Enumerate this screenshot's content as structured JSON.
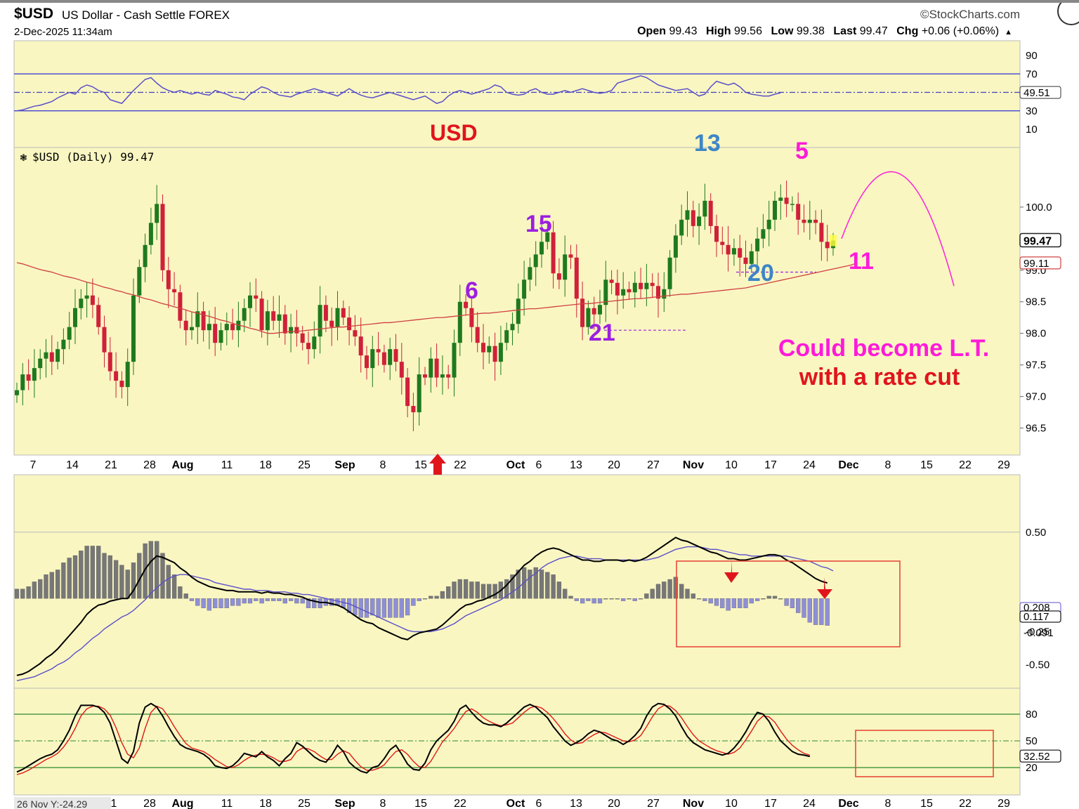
{
  "header": {
    "symbol": "$USD",
    "description": "US Dollar - Cash Settle FOREX",
    "datetime": "2-Dec-2025 11:34am",
    "brand": "©StockCharts.com",
    "ohlc": {
      "open_label": "Open",
      "open": "99.43",
      "high_label": "High",
      "high": "99.56",
      "low_label": "Low",
      "low": "99.38",
      "last_label": "Last",
      "last": "99.47",
      "chg_label": "Chg",
      "chg": "+0.06 (+0.06%)",
      "chg_arrow": "▲"
    }
  },
  "chart_data": [
    {
      "type": "line",
      "name": "RSI panel",
      "y_ticks": [
        "90",
        "70",
        "30",
        "10"
      ],
      "last_value_label": "49.51",
      "ylim": [
        0,
        100
      ],
      "levels": [
        70,
        50,
        30
      ],
      "values": [
        30,
        31,
        33,
        35,
        36,
        38,
        40,
        44,
        47,
        50,
        48,
        55,
        58,
        56,
        52,
        50,
        42,
        40,
        38,
        45,
        52,
        58,
        64,
        66,
        60,
        55,
        52,
        50,
        52,
        50,
        48,
        50,
        48,
        47,
        52,
        50,
        48,
        45,
        44,
        42,
        48,
        52,
        56,
        54,
        50,
        47,
        46,
        45,
        48,
        50,
        52,
        54,
        52,
        50,
        48,
        46,
        50,
        54,
        50,
        47,
        45,
        44,
        46,
        48,
        50,
        48,
        46,
        44,
        42,
        44,
        46,
        42,
        38,
        40,
        46,
        50,
        52,
        50,
        48,
        50,
        52,
        54,
        58,
        56,
        50,
        48,
        47,
        48,
        52,
        54,
        50,
        48,
        48,
        50,
        52,
        50,
        52,
        54,
        52,
        50,
        49,
        50,
        52,
        60,
        62,
        64,
        66,
        68,
        66,
        62,
        58,
        56,
        54,
        52,
        53,
        54,
        50,
        46,
        48,
        56,
        62,
        60,
        58,
        60,
        56,
        50,
        48,
        47,
        46,
        46,
        48,
        49.51
      ]
    },
    {
      "type": "candlestick",
      "name": "$USD (Daily)",
      "legend_label": "$USD (Daily) 99.47",
      "title": "USD",
      "ylim": [
        96.05,
        101.0
      ],
      "y_ticks": [
        "100.0",
        "99.5",
        "99.0",
        "98.5",
        "98.0",
        "97.5",
        "97.0",
        "96.5"
      ],
      "last_value_label": "99.47",
      "ma_value_label": "99.11",
      "x_tick_labels": [
        "7",
        "14",
        "21",
        "28",
        "Aug",
        "11",
        "18",
        "25",
        "Sep",
        "8",
        "15",
        "22",
        "Oct",
        "6",
        "13",
        "20",
        "27",
        "Nov",
        "10",
        "17",
        "24",
        "Dec",
        "8",
        "15",
        "22",
        "29"
      ],
      "closes": [
        97.1,
        97.35,
        97.25,
        97.45,
        97.6,
        97.7,
        97.55,
        97.75,
        97.9,
        98.1,
        98.4,
        98.55,
        98.6,
        98.45,
        98.1,
        97.7,
        97.4,
        97.25,
        97.15,
        97.55,
        98.6,
        99.05,
        99.4,
        99.75,
        100.05,
        99.0,
        98.7,
        98.65,
        98.2,
        98.05,
        98.1,
        98.35,
        98.05,
        98.15,
        97.85,
        98.05,
        98.15,
        98.05,
        98.2,
        98.4,
        98.6,
        98.55,
        98.05,
        98.35,
        98.2,
        98.3,
        98.0,
        98.1,
        98.0,
        97.85,
        97.75,
        97.95,
        98.45,
        98.2,
        98.1,
        98.4,
        98.25,
        98.05,
        97.95,
        97.65,
        97.45,
        97.75,
        97.7,
        97.5,
        97.75,
        97.55,
        97.3,
        96.85,
        96.75,
        97.35,
        97.3,
        97.6,
        97.3,
        97.35,
        97.3,
        97.85,
        98.5,
        98.4,
        98.1,
        97.85,
        97.7,
        97.8,
        97.55,
        97.85,
        98.05,
        98.15,
        98.55,
        98.85,
        99.05,
        99.25,
        99.45,
        99.6,
        98.95,
        98.85,
        99.25,
        99.2,
        98.55,
        98.1,
        98.4,
        98.3,
        98.45,
        98.85,
        98.8,
        98.6,
        98.7,
        98.65,
        98.8,
        98.7,
        98.8,
        98.75,
        98.55,
        98.7,
        99.2,
        99.55,
        99.8,
        99.95,
        99.7,
        99.85,
        100.1,
        99.7,
        99.45,
        99.4,
        99.25,
        99.35,
        99.2,
        99.1,
        99.3,
        99.5,
        99.65,
        99.8,
        100.1,
        100.15,
        100.05,
        100.05,
        99.8,
        99.75,
        99.8,
        99.75,
        99.45,
        99.35,
        99.47
      ],
      "ma50_values": [
        99.12,
        99.1,
        99.07,
        99.04,
        99.01,
        98.99,
        98.97,
        98.94,
        98.91,
        98.89,
        98.87,
        98.84,
        98.81,
        98.79,
        98.76,
        98.73,
        98.71,
        98.68,
        98.66,
        98.63,
        98.61,
        98.58,
        98.55,
        98.53,
        98.5,
        98.47,
        98.45,
        98.42,
        98.4,
        98.37,
        98.34,
        98.32,
        98.29,
        98.27,
        98.24,
        98.21,
        98.19,
        98.16,
        98.13,
        98.11,
        98.08,
        98.06,
        98.03,
        98.0,
        98.0,
        98.01,
        98.02,
        98.03,
        98.03,
        98.04,
        98.05,
        98.06,
        98.07,
        98.08,
        98.09,
        98.1,
        98.1,
        98.11,
        98.12,
        98.13,
        98.14,
        98.15,
        98.16,
        98.17,
        98.17,
        98.18,
        98.19,
        98.2,
        98.21,
        98.22,
        98.23,
        98.24,
        98.25,
        98.25,
        98.26,
        98.27,
        98.28,
        98.29,
        98.3,
        98.31,
        98.32,
        98.32,
        98.33,
        98.34,
        98.35,
        98.36,
        98.37,
        98.38,
        98.39,
        98.39,
        98.4,
        98.41,
        98.42,
        98.43,
        98.44,
        98.45,
        98.46,
        98.47,
        98.47,
        98.48,
        98.49,
        98.5,
        98.51,
        98.52,
        98.53,
        98.54,
        98.55,
        98.55,
        98.56,
        98.57,
        98.58,
        98.59,
        98.6,
        98.61,
        98.62,
        98.62,
        98.63,
        98.64,
        98.65,
        98.66,
        98.67,
        98.68,
        98.69,
        98.7,
        98.71,
        98.72,
        98.74,
        98.76,
        98.78,
        98.8,
        98.82,
        98.84,
        98.86,
        98.88,
        98.9,
        98.92,
        98.94,
        98.96,
        98.98,
        99.0,
        99.02,
        99.04,
        99.06,
        99.08,
        99.11
      ],
      "annotations": [
        {
          "text": "6",
          "color": "#9b1fe0"
        },
        {
          "text": "15",
          "color": "#9b1fe0"
        },
        {
          "text": "21",
          "color": "#9b1fe0"
        },
        {
          "text": "13",
          "color": "#3d86c6"
        },
        {
          "text": "20",
          "color": "#3d86c6"
        },
        {
          "text": "5",
          "color": "#ff1ad9"
        },
        {
          "text": "11",
          "color": "#ff1ad9"
        },
        {
          "text": "Could become L.T.",
          "color": "#ff1ad9"
        },
        {
          "text": "with a rate cut",
          "color": "#e0151c"
        }
      ]
    },
    {
      "type": "line",
      "name": "MACD panel",
      "ylim": [
        -0.65,
        0.7
      ],
      "y_ticks": [
        "0.50",
        "-0.25",
        "-0.50"
      ],
      "labels": {
        "macd": "0.117",
        "signal": "0.208",
        "histogram": "-0.091"
      },
      "macd_values": [
        -0.58,
        -0.57,
        -0.55,
        -0.52,
        -0.49,
        -0.45,
        -0.42,
        -0.38,
        -0.33,
        -0.28,
        -0.23,
        -0.18,
        -0.12,
        -0.08,
        -0.05,
        -0.04,
        -0.02,
        -0.01,
        0.0,
        0.0,
        0.06,
        0.14,
        0.22,
        0.28,
        0.32,
        0.31,
        0.29,
        0.27,
        0.23,
        0.2,
        0.16,
        0.13,
        0.11,
        0.09,
        0.08,
        0.07,
        0.06,
        0.06,
        0.05,
        0.05,
        0.05,
        0.05,
        0.04,
        0.05,
        0.04,
        0.04,
        0.03,
        0.03,
        0.02,
        0.01,
        -0.01,
        -0.02,
        -0.03,
        -0.03,
        -0.04,
        -0.05,
        -0.07,
        -0.1,
        -0.13,
        -0.16,
        -0.18,
        -0.19,
        -0.22,
        -0.24,
        -0.26,
        -0.28,
        -0.3,
        -0.31,
        -0.28,
        -0.26,
        -0.25,
        -0.24,
        -0.23,
        -0.2,
        -0.16,
        -0.12,
        -0.08,
        -0.05,
        -0.04,
        -0.02,
        -0.01,
        0.01,
        0.03,
        0.06,
        0.1,
        0.15,
        0.2,
        0.25,
        0.28,
        0.32,
        0.35,
        0.37,
        0.38,
        0.37,
        0.35,
        0.33,
        0.31,
        0.29,
        0.29,
        0.28,
        0.28,
        0.29,
        0.29,
        0.29,
        0.28,
        0.29,
        0.28,
        0.29,
        0.31,
        0.34,
        0.37,
        0.4,
        0.43,
        0.46,
        0.44,
        0.43,
        0.41,
        0.39,
        0.37,
        0.35,
        0.34,
        0.32,
        0.3,
        0.3,
        0.29,
        0.29,
        0.3,
        0.31,
        0.32,
        0.33,
        0.33,
        0.32,
        0.29,
        0.27,
        0.24,
        0.21,
        0.18,
        0.15,
        0.13,
        0.117
      ],
      "signal_values": [
        -0.62,
        -0.61,
        -0.6,
        -0.59,
        -0.57,
        -0.55,
        -0.53,
        -0.5,
        -0.48,
        -0.45,
        -0.41,
        -0.38,
        -0.34,
        -0.3,
        -0.27,
        -0.23,
        -0.2,
        -0.17,
        -0.14,
        -0.12,
        -0.09,
        -0.05,
        -0.01,
        0.04,
        0.08,
        0.12,
        0.15,
        0.17,
        0.18,
        0.18,
        0.17,
        0.16,
        0.15,
        0.14,
        0.12,
        0.11,
        0.1,
        0.09,
        0.08,
        0.07,
        0.07,
        0.06,
        0.06,
        0.06,
        0.05,
        0.05,
        0.05,
        0.04,
        0.04,
        0.03,
        0.03,
        0.02,
        0.01,
        0.0,
        -0.01,
        -0.02,
        -0.03,
        -0.04,
        -0.06,
        -0.08,
        -0.1,
        -0.12,
        -0.14,
        -0.16,
        -0.18,
        -0.2,
        -0.22,
        -0.24,
        -0.25,
        -0.25,
        -0.25,
        -0.25,
        -0.24,
        -0.23,
        -0.21,
        -0.19,
        -0.16,
        -0.13,
        -0.11,
        -0.09,
        -0.07,
        -0.05,
        -0.03,
        -0.01,
        0.02,
        0.05,
        0.08,
        0.12,
        0.16,
        0.19,
        0.23,
        0.26,
        0.28,
        0.3,
        0.31,
        0.32,
        0.32,
        0.31,
        0.3,
        0.3,
        0.3,
        0.29,
        0.29,
        0.29,
        0.29,
        0.29,
        0.29,
        0.29,
        0.29,
        0.3,
        0.31,
        0.33,
        0.35,
        0.37,
        0.38,
        0.39,
        0.39,
        0.39,
        0.38,
        0.37,
        0.37,
        0.36,
        0.35,
        0.34,
        0.33,
        0.33,
        0.32,
        0.32,
        0.32,
        0.32,
        0.32,
        0.32,
        0.32,
        0.31,
        0.3,
        0.29,
        0.28,
        0.26,
        0.24,
        0.23,
        0.208
      ]
    },
    {
      "type": "line",
      "name": "Stochastic panel",
      "ylim": [
        0,
        100
      ],
      "y_ticks": [
        "80",
        "50",
        "20"
      ],
      "levels": [
        80,
        50,
        20
      ],
      "last_value_label": "32.52",
      "x_tick_labels": [
        "1",
        "28",
        "Aug",
        "11",
        "18",
        "25",
        "Sep",
        "8",
        "15",
        "22",
        "Oct",
        "6",
        "13",
        "20",
        "27",
        "Nov",
        "10",
        "17",
        "24",
        "Dec",
        "8",
        "15",
        "22",
        "29"
      ],
      "corner_label": "26 Nov Y:-24.29",
      "k_values": [
        15,
        18,
        22,
        26,
        30,
        33,
        35,
        40,
        50,
        62,
        78,
        90,
        90,
        90,
        88,
        82,
        70,
        50,
        30,
        25,
        38,
        70,
        88,
        92,
        88,
        78,
        66,
        55,
        46,
        42,
        40,
        38,
        35,
        30,
        22,
        20,
        19,
        22,
        28,
        36,
        34,
        32,
        38,
        32,
        28,
        22,
        30,
        36,
        48,
        44,
        38,
        32,
        28,
        26,
        34,
        45,
        38,
        26,
        20,
        16,
        14,
        20,
        22,
        30,
        40,
        45,
        35,
        24,
        18,
        17,
        25,
        40,
        50,
        56,
        62,
        72,
        86,
        90,
        82,
        75,
        70,
        68,
        68,
        66,
        70,
        76,
        82,
        88,
        91,
        88,
        82,
        76,
        66,
        58,
        50,
        45,
        48,
        52,
        58,
        62,
        60,
        56,
        52,
        50,
        46,
        50,
        56,
        64,
        78,
        88,
        92,
        91,
        86,
        78,
        66,
        55,
        48,
        44,
        40,
        38,
        36,
        34,
        36,
        42,
        50,
        60,
        72,
        82,
        80,
        72,
        60,
        50,
        44,
        38,
        35,
        34,
        32.52
      ],
      "d_values": [
        12,
        14,
        17,
        21,
        25,
        29,
        32,
        36,
        43,
        52,
        64,
        78,
        86,
        89,
        89,
        86,
        79,
        65,
        48,
        35,
        31,
        42,
        64,
        82,
        89,
        86,
        77,
        66,
        56,
        47,
        42,
        40,
        38,
        34,
        29,
        25,
        21,
        20,
        23,
        28,
        32,
        34,
        35,
        34,
        31,
        27,
        27,
        29,
        38,
        42,
        41,
        38,
        33,
        29,
        29,
        35,
        39,
        36,
        28,
        21,
        17,
        17,
        19,
        23,
        31,
        38,
        40,
        35,
        27,
        21,
        20,
        27,
        38,
        49,
        56,
        64,
        74,
        83,
        86,
        82,
        76,
        72,
        69,
        67,
        68,
        70,
        76,
        82,
        87,
        89,
        87,
        82,
        75,
        67,
        58,
        51,
        47,
        48,
        53,
        57,
        60,
        59,
        56,
        53,
        50,
        49,
        51,
        56,
        66,
        77,
        86,
        90,
        89,
        84,
        76,
        66,
        57,
        50,
        46,
        42,
        39,
        37,
        35,
        37,
        42,
        51,
        61,
        72,
        78,
        77,
        71,
        61,
        52,
        45,
        40,
        36,
        34
      ]
    }
  ]
}
